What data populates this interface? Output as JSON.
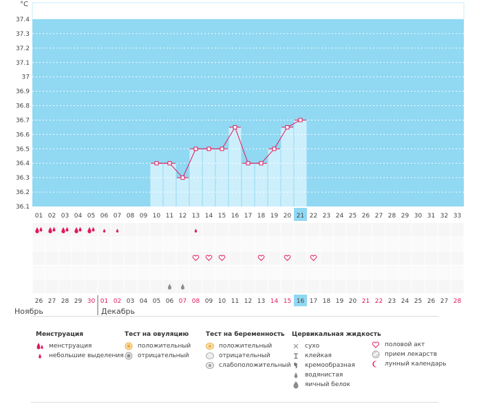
{
  "chart_data": {
    "type": "line",
    "unit_label": "°C",
    "yticks": [
      "37.4",
      "37.3",
      "37.2",
      "37.1",
      "37",
      "36.9",
      "36.8",
      "36.7",
      "36.6",
      "36.5",
      "36.4",
      "36.3",
      "36.2",
      "36.1"
    ],
    "ylim": [
      36.1,
      37.5
    ],
    "cycle_days": [
      "01",
      "02",
      "03",
      "04",
      "05",
      "06",
      "07",
      "08",
      "09",
      "10",
      "11",
      "12",
      "13",
      "14",
      "15",
      "16",
      "17",
      "18",
      "19",
      "20",
      "21",
      "22",
      "23",
      "24",
      "25",
      "26",
      "27",
      "28",
      "29",
      "30",
      "31",
      "32",
      "33"
    ],
    "dates": [
      "26",
      "27",
      "28",
      "29",
      "30",
      "01",
      "02",
      "03",
      "04",
      "05",
      "06",
      "07",
      "08",
      "09",
      "10",
      "11",
      "12",
      "13",
      "14",
      "15",
      "16",
      "17",
      "18",
      "19",
      "20",
      "21",
      "22",
      "23",
      "24",
      "25",
      "26",
      "27",
      "28"
    ],
    "weekend_date_indexes": [
      4,
      5,
      6,
      11,
      12,
      18,
      19,
      25,
      26,
      32
    ],
    "highlight_index": 20,
    "months": [
      "Ноябрь",
      "Декабрь"
    ],
    "series": [
      {
        "x": [
          10,
          11,
          12,
          13,
          14,
          15,
          16,
          17,
          18,
          19,
          20,
          21
        ],
        "values": [
          36.4,
          36.4,
          36.3,
          36.5,
          36.5,
          36.5,
          36.65,
          36.4,
          36.4,
          36.5,
          36.65,
          36.7
        ]
      }
    ],
    "markers": {
      "menstruation_days": [
        1,
        2,
        3,
        4,
        5
      ],
      "spotting_days": [
        6,
        7,
        13
      ],
      "intercourse_days": [
        13,
        14,
        15,
        18,
        20,
        22
      ],
      "eggwhite_days": [
        11,
        12
      ]
    },
    "colors": {
      "plot_bg": "#91d8f2",
      "bar_fill": "#cdeffc",
      "line": "#e0195c",
      "weekend": "#e0195c",
      "highlight": "#91d8f2"
    }
  },
  "legend": {
    "menstruation": {
      "title": "Менструация",
      "items": [
        "менструация",
        "небольшие выделения"
      ]
    },
    "ovulation": {
      "title": "Тест на овуляцию",
      "items": [
        "положительный",
        "отрицательный"
      ]
    },
    "pregnancy": {
      "title": "Тест на беременность",
      "items": [
        "положительный",
        "отрицательный",
        "слабоположительный"
      ]
    },
    "cervical": {
      "title": "Цервикальная жидкость",
      "items": [
        "сухо",
        "клейкая",
        "кремообразная",
        "водянистая",
        "яичный белок"
      ]
    },
    "other": {
      "items": [
        "половой акт",
        "прием лекарств",
        "лунный календарь"
      ]
    }
  }
}
